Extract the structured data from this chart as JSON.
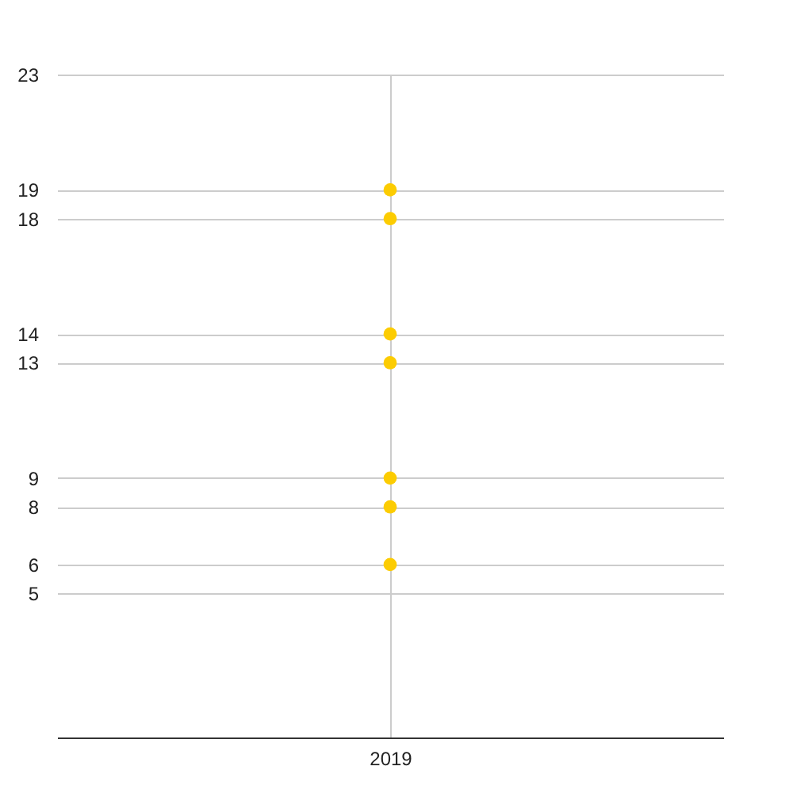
{
  "chart_data": {
    "type": "scatter",
    "categories": [
      "2019"
    ],
    "series": [
      {
        "color": "#fccc02",
        "values": [
          6
        ]
      },
      {
        "color": "#fccc02",
        "values": [
          8
        ]
      },
      {
        "color": "#fccc02",
        "values": [
          9
        ]
      },
      {
        "color": "#fccc02",
        "values": [
          13
        ]
      },
      {
        "color": "#fccc02",
        "values": [
          14
        ]
      },
      {
        "color": "#fccc02",
        "values": [
          18
        ]
      },
      {
        "color": "#fccc02",
        "values": [
          19
        ]
      }
    ],
    "ylim": [
      0,
      23
    ],
    "yticks": [
      5,
      6,
      8,
      9,
      13,
      14,
      18,
      19,
      23
    ],
    "grid": true,
    "marker": "circle"
  }
}
